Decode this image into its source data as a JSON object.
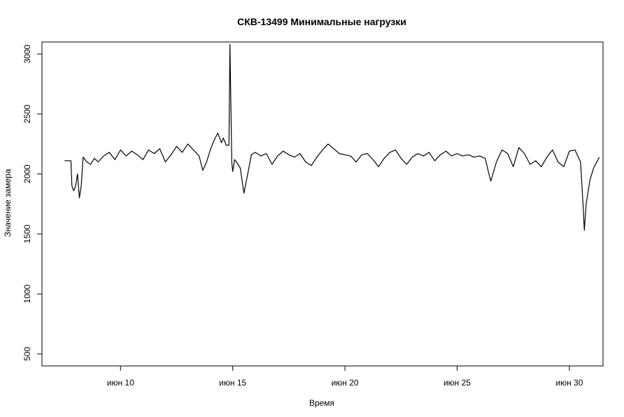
{
  "chart_data": {
    "type": "line",
    "title": "СКВ-13499 Минимальные нагрузки",
    "xlabel": "Время",
    "ylabel": "Значение замера",
    "x_range": [
      "2019-06-06T12:00",
      "2019-07-01T12:00"
    ],
    "ylim": [
      400,
      3100
    ],
    "x_ticks": [
      {
        "date": "2019-06-10",
        "label": "июн 10"
      },
      {
        "date": "2019-06-15",
        "label": "июн 15"
      },
      {
        "date": "2019-06-20",
        "label": "июн 20"
      },
      {
        "date": "2019-06-25",
        "label": "июн 25"
      },
      {
        "date": "2019-06-30",
        "label": "июн 30"
      }
    ],
    "y_ticks": [
      500,
      1000,
      1500,
      2000,
      2500,
      3000
    ],
    "grid": false,
    "legend": "none",
    "colors": {
      "line": "#000000",
      "axis": "#000000",
      "background": "#ffffff"
    },
    "series": [
      {
        "points": [
          [
            "2019-06-07T12:00",
            2110
          ],
          [
            "2019-06-07T16:00",
            2110
          ],
          [
            "2019-06-07T19:00",
            2110
          ],
          [
            "2019-06-07T20:00",
            1900
          ],
          [
            "2019-06-07T22:00",
            1860
          ],
          [
            "2019-06-08T00:00",
            1900
          ],
          [
            "2019-06-08T02:00",
            2000
          ],
          [
            "2019-06-08T04:00",
            1800
          ],
          [
            "2019-06-08T06:00",
            1900
          ],
          [
            "2019-06-08T08:00",
            2140
          ],
          [
            "2019-06-08T12:00",
            2100
          ],
          [
            "2019-06-08T16:00",
            2080
          ],
          [
            "2019-06-08T20:00",
            2130
          ],
          [
            "2019-06-09T00:00",
            2100
          ],
          [
            "2019-06-09T06:00",
            2150
          ],
          [
            "2019-06-09T12:00",
            2180
          ],
          [
            "2019-06-09T18:00",
            2120
          ],
          [
            "2019-06-10T00:00",
            2200
          ],
          [
            "2019-06-10T06:00",
            2150
          ],
          [
            "2019-06-10T12:00",
            2190
          ],
          [
            "2019-06-10T18:00",
            2160
          ],
          [
            "2019-06-11T00:00",
            2120
          ],
          [
            "2019-06-11T06:00",
            2200
          ],
          [
            "2019-06-11T12:00",
            2170
          ],
          [
            "2019-06-11T18:00",
            2210
          ],
          [
            "2019-06-12T00:00",
            2100
          ],
          [
            "2019-06-12T06:00",
            2160
          ],
          [
            "2019-06-12T12:00",
            2230
          ],
          [
            "2019-06-12T18:00",
            2180
          ],
          [
            "2019-06-13T00:00",
            2250
          ],
          [
            "2019-06-13T06:00",
            2200
          ],
          [
            "2019-06-13T12:00",
            2150
          ],
          [
            "2019-06-13T16:00",
            2030
          ],
          [
            "2019-06-13T20:00",
            2100
          ],
          [
            "2019-06-14T00:00",
            2200
          ],
          [
            "2019-06-14T04:00",
            2280
          ],
          [
            "2019-06-14T08:00",
            2340
          ],
          [
            "2019-06-14T12:00",
            2260
          ],
          [
            "2019-06-14T14:00",
            2300
          ],
          [
            "2019-06-14T17:00",
            2240
          ],
          [
            "2019-06-14T19:00",
            2240
          ],
          [
            "2019-06-14T20:00",
            2240
          ],
          [
            "2019-06-14T21:00",
            3080
          ],
          [
            "2019-06-14T22:00",
            2600
          ],
          [
            "2019-06-14T23:00",
            2100
          ],
          [
            "2019-06-15T00:00",
            2020
          ],
          [
            "2019-06-15T02:00",
            2120
          ],
          [
            "2019-06-15T04:00",
            2100
          ],
          [
            "2019-06-15T08:00",
            2050
          ],
          [
            "2019-06-15T12:00",
            1840
          ],
          [
            "2019-06-15T16:00",
            2000
          ],
          [
            "2019-06-15T20:00",
            2160
          ],
          [
            "2019-06-16T00:00",
            2180
          ],
          [
            "2019-06-16T06:00",
            2150
          ],
          [
            "2019-06-16T12:00",
            2170
          ],
          [
            "2019-06-16T18:00",
            2080
          ],
          [
            "2019-06-17T00:00",
            2150
          ],
          [
            "2019-06-17T06:00",
            2190
          ],
          [
            "2019-06-17T12:00",
            2160
          ],
          [
            "2019-06-17T18:00",
            2140
          ],
          [
            "2019-06-18T00:00",
            2170
          ],
          [
            "2019-06-18T06:00",
            2100
          ],
          [
            "2019-06-18T12:00",
            2070
          ],
          [
            "2019-06-18T18:00",
            2140
          ],
          [
            "2019-06-19T00:00",
            2200
          ],
          [
            "2019-06-19T06:00",
            2250
          ],
          [
            "2019-06-19T12:00",
            2210
          ],
          [
            "2019-06-19T18:00",
            2170
          ],
          [
            "2019-06-20T00:00",
            2160
          ],
          [
            "2019-06-20T06:00",
            2150
          ],
          [
            "2019-06-20T12:00",
            2100
          ],
          [
            "2019-06-20T18:00",
            2160
          ],
          [
            "2019-06-21T00:00",
            2170
          ],
          [
            "2019-06-21T06:00",
            2120
          ],
          [
            "2019-06-21T12:00",
            2060
          ],
          [
            "2019-06-21T18:00",
            2130
          ],
          [
            "2019-06-22T00:00",
            2180
          ],
          [
            "2019-06-22T06:00",
            2200
          ],
          [
            "2019-06-22T12:00",
            2130
          ],
          [
            "2019-06-22T18:00",
            2080
          ],
          [
            "2019-06-23T00:00",
            2140
          ],
          [
            "2019-06-23T06:00",
            2170
          ],
          [
            "2019-06-23T12:00",
            2150
          ],
          [
            "2019-06-23T18:00",
            2180
          ],
          [
            "2019-06-24T00:00",
            2110
          ],
          [
            "2019-06-24T06:00",
            2160
          ],
          [
            "2019-06-24T12:00",
            2190
          ],
          [
            "2019-06-24T18:00",
            2150
          ],
          [
            "2019-06-25T00:00",
            2170
          ],
          [
            "2019-06-25T06:00",
            2150
          ],
          [
            "2019-06-25T12:00",
            2160
          ],
          [
            "2019-06-25T18:00",
            2140
          ],
          [
            "2019-06-26T00:00",
            2150
          ],
          [
            "2019-06-26T06:00",
            2130
          ],
          [
            "2019-06-26T10:00",
            2000
          ],
          [
            "2019-06-26T12:00",
            1940
          ],
          [
            "2019-06-26T18:00",
            2100
          ],
          [
            "2019-06-27T00:00",
            2200
          ],
          [
            "2019-06-27T06:00",
            2170
          ],
          [
            "2019-06-27T12:00",
            2060
          ],
          [
            "2019-06-27T18:00",
            2220
          ],
          [
            "2019-06-28T00:00",
            2170
          ],
          [
            "2019-06-28T06:00",
            2080
          ],
          [
            "2019-06-28T12:00",
            2110
          ],
          [
            "2019-06-28T18:00",
            2060
          ],
          [
            "2019-06-29T00:00",
            2140
          ],
          [
            "2019-06-29T06:00",
            2200
          ],
          [
            "2019-06-29T12:00",
            2100
          ],
          [
            "2019-06-29T18:00",
            2060
          ],
          [
            "2019-06-30T00:00",
            2190
          ],
          [
            "2019-06-30T06:00",
            2200
          ],
          [
            "2019-06-30T12:00",
            2100
          ],
          [
            "2019-06-30T15:00",
            1700
          ],
          [
            "2019-06-30T16:00",
            1530
          ],
          [
            "2019-06-30T18:00",
            1750
          ],
          [
            "2019-06-30T22:00",
            1950
          ],
          [
            "2019-07-01T02:00",
            2050
          ],
          [
            "2019-07-01T06:00",
            2110
          ],
          [
            "2019-07-01T08:00",
            2140
          ]
        ]
      }
    ]
  }
}
